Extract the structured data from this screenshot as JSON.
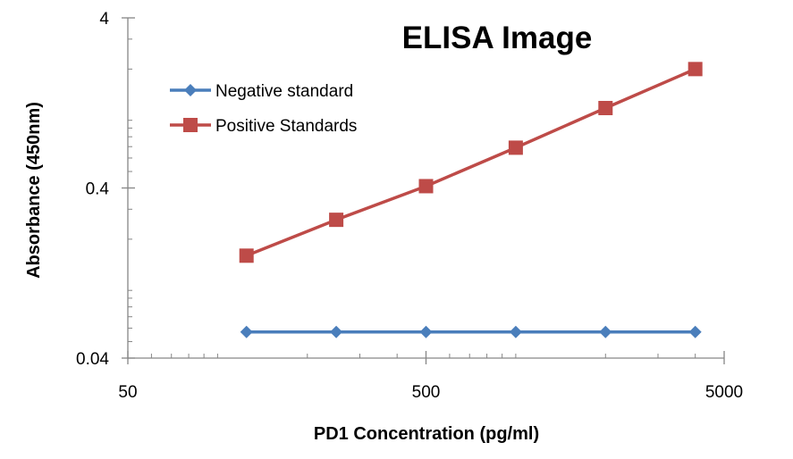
{
  "chart_data": {
    "type": "line",
    "title": "ELISA Image",
    "xlabel": "PD1 Concentration (pg/ml)",
    "ylabel": "Absorbance (450nm)",
    "x_scale": "log",
    "y_scale": "log",
    "xlim": [
      50,
      5000
    ],
    "ylim": [
      0.04,
      4
    ],
    "x_tick_labels": [
      "50",
      "500",
      "5000"
    ],
    "y_tick_labels": [
      "0.04",
      "0.4",
      "4"
    ],
    "x": [
      125,
      250,
      500,
      1000,
      2000,
      4000
    ],
    "series": [
      {
        "name": "Negative standard",
        "color": "#4a7ebb",
        "marker": "diamond",
        "values": [
          0.057,
          0.057,
          0.057,
          0.057,
          0.057,
          0.057
        ]
      },
      {
        "name": "Positive Standards",
        "color": "#be4b48",
        "marker": "square",
        "values": [
          0.16,
          0.26,
          0.41,
          0.69,
          1.18,
          2.0
        ]
      }
    ],
    "legend": "top-left",
    "grid": false
  }
}
